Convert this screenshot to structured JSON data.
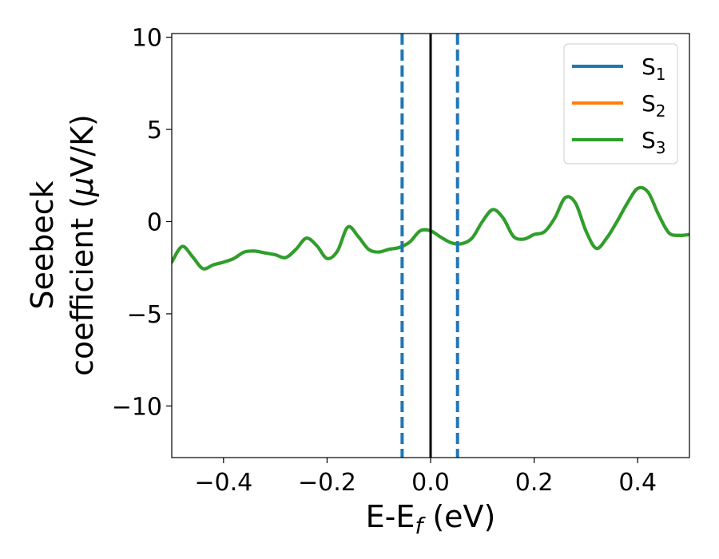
{
  "chart_data": {
    "type": "line",
    "xlabel_parts": {
      "base": "E-E",
      "sub": "f",
      "unit": " (eV)"
    },
    "ylabel_lines": [
      "Seebeck",
      "coefficient  (",
      "μ",
      "V/K)"
    ],
    "xlim": [
      -0.5,
      0.5
    ],
    "ylim": [
      -12.8,
      10.2
    ],
    "xticks": [
      -0.4,
      -0.2,
      0.0,
      0.2,
      0.4
    ],
    "xtick_labels": [
      "−0.4",
      "−0.2",
      "0.0",
      "0.2",
      "0.4"
    ],
    "yticks": [
      10,
      5,
      0,
      -5,
      -10
    ],
    "ytick_labels": [
      "10",
      "5",
      "0",
      "−5",
      "−10"
    ],
    "grid": false,
    "legend_position": "top-right",
    "vlines": [
      {
        "x": -0.055,
        "style": "dashed",
        "color": "#1f77b4"
      },
      {
        "x": 0.0,
        "style": "solid",
        "color": "#000000"
      },
      {
        "x": 0.052,
        "style": "dashed",
        "color": "#1f77b4"
      }
    ],
    "x": [
      -0.5,
      -0.48,
      -0.46,
      -0.44,
      -0.42,
      -0.4,
      -0.38,
      -0.36,
      -0.34,
      -0.32,
      -0.3,
      -0.28,
      -0.26,
      -0.24,
      -0.22,
      -0.2,
      -0.18,
      -0.16,
      -0.14,
      -0.12,
      -0.1,
      -0.08,
      -0.06,
      -0.04,
      -0.02,
      0.0,
      0.02,
      0.04,
      0.06,
      0.08,
      0.1,
      0.12,
      0.14,
      0.16,
      0.18,
      0.2,
      0.22,
      0.24,
      0.26,
      0.28,
      0.3,
      0.32,
      0.34,
      0.36,
      0.38,
      0.4,
      0.42,
      0.44,
      0.46,
      0.48,
      0.5
    ],
    "series": [
      {
        "label_base": "S",
        "label_sub": "1",
        "color": "#1f77b4",
        "values": [
          -2.2,
          -1.35,
          -1.9,
          -2.55,
          -2.35,
          -2.2,
          -2.0,
          -1.65,
          -1.6,
          -1.7,
          -1.8,
          -1.95,
          -1.5,
          -0.9,
          -1.3,
          -2.0,
          -1.6,
          -0.3,
          -0.8,
          -1.5,
          -1.65,
          -1.5,
          -1.4,
          -1.1,
          -0.5,
          -0.5,
          -0.85,
          -1.15,
          -1.2,
          -0.9,
          0.0,
          0.65,
          0.2,
          -0.8,
          -0.95,
          -0.7,
          -0.55,
          0.2,
          1.3,
          1.0,
          -0.5,
          -1.45,
          -0.9,
          0.0,
          1.0,
          1.8,
          1.6,
          0.4,
          -0.6,
          -0.75,
          -0.7
        ]
      },
      {
        "label_base": "S",
        "label_sub": "2",
        "color": "#ff7f0e",
        "values": [
          -2.2,
          -1.35,
          -1.9,
          -2.55,
          -2.35,
          -2.2,
          -2.0,
          -1.65,
          -1.6,
          -1.7,
          -1.8,
          -1.95,
          -1.5,
          -0.9,
          -1.3,
          -2.0,
          -1.6,
          -0.3,
          -0.8,
          -1.5,
          -1.65,
          -1.5,
          -1.4,
          -1.1,
          -0.5,
          -0.5,
          -0.85,
          -1.15,
          -1.2,
          -0.9,
          0.0,
          0.65,
          0.2,
          -0.8,
          -0.95,
          -0.7,
          -0.55,
          0.2,
          1.3,
          1.0,
          -0.5,
          -1.45,
          -0.9,
          0.0,
          1.0,
          1.8,
          1.6,
          0.4,
          -0.6,
          -0.75,
          -0.7
        ]
      },
      {
        "label_base": "S",
        "label_sub": "3",
        "color": "#2ca02c",
        "values": [
          -2.2,
          -1.35,
          -1.9,
          -2.55,
          -2.35,
          -2.2,
          -2.0,
          -1.65,
          -1.6,
          -1.7,
          -1.8,
          -1.95,
          -1.5,
          -0.9,
          -1.3,
          -2.0,
          -1.6,
          -0.3,
          -0.8,
          -1.5,
          -1.65,
          -1.5,
          -1.4,
          -1.1,
          -0.5,
          -0.5,
          -0.85,
          -1.15,
          -1.2,
          -0.9,
          0.0,
          0.65,
          0.2,
          -0.8,
          -0.95,
          -0.7,
          -0.55,
          0.2,
          1.3,
          1.0,
          -0.5,
          -1.45,
          -0.9,
          0.0,
          1.0,
          1.8,
          1.6,
          0.4,
          -0.6,
          -0.75,
          -0.7
        ]
      }
    ]
  }
}
